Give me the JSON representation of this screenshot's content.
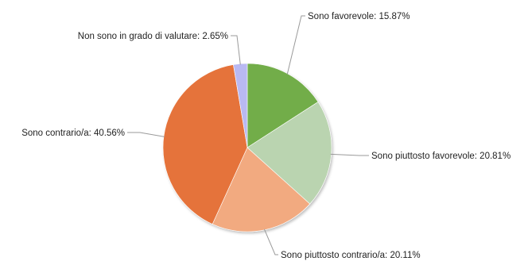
{
  "chart_data": {
    "type": "pie",
    "title": "",
    "legend": "none",
    "labels_format": "{name}: {value}%",
    "slices": [
      {
        "name": "Sono favorevole",
        "value": 15.87,
        "label": "Sono favorevole: 15.87%",
        "color": "#72ad4a"
      },
      {
        "name": "Sono piuttosto favorevole",
        "value": 20.81,
        "label": "Sono piuttosto favorevole: 20.81%",
        "color": "#bad4b0"
      },
      {
        "name": "Sono piuttosto contrario/a",
        "value": 20.11,
        "label": "Sono piuttosto contrario/a: 20.11%",
        "color": "#f2aa80"
      },
      {
        "name": "Sono contrario/a",
        "value": 40.56,
        "label": "Sono contrario/a: 40.56%",
        "color": "#e5733a"
      },
      {
        "name": "Non sono in grado di valutare",
        "value": 2.65,
        "label": "Non sono in grado di valutare: 2.65%",
        "color": "#b9b9f2"
      }
    ]
  }
}
